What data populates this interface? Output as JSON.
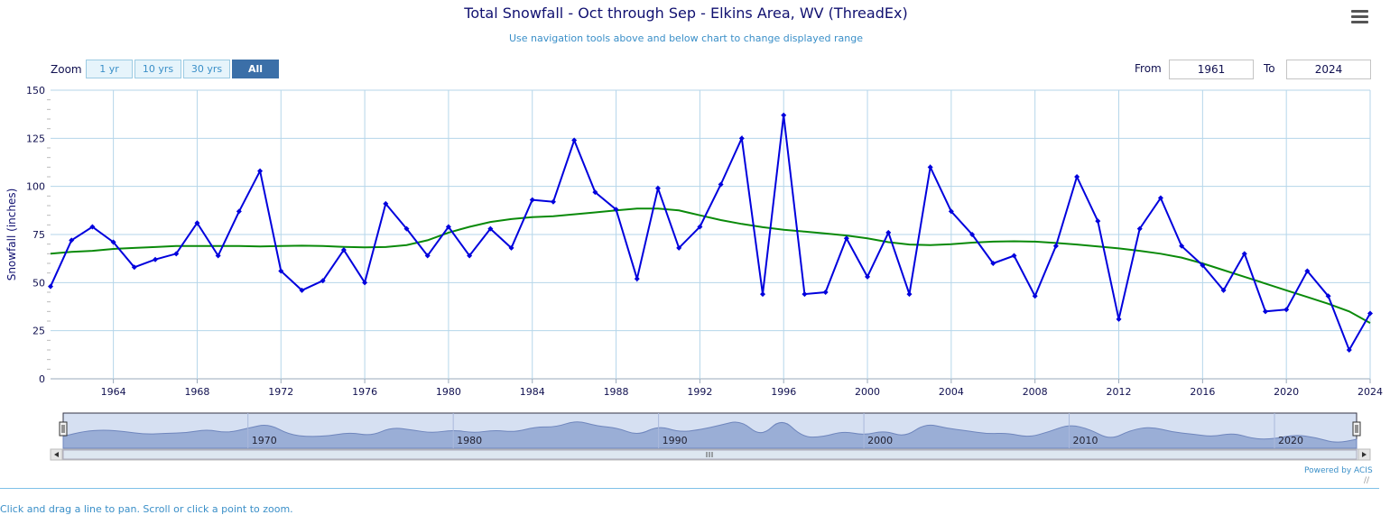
{
  "header": {
    "title": "Total Snowfall - Oct through Sep - Elkins Area, WV (ThreadEx)",
    "subtitle": "Use navigation tools above and below chart to change displayed range"
  },
  "zoom": {
    "label": "Zoom",
    "buttons": [
      "1 yr",
      "10 yrs",
      "30 yrs",
      "All"
    ],
    "active": "All"
  },
  "range": {
    "from_label": "From",
    "from_value": "1961",
    "to_label": "To",
    "to_value": "2024"
  },
  "footer": {
    "powered_by": "Powered by ACIS",
    "cut_text": "Click and drag a line to pan. Scroll or click a point to zoom."
  },
  "colors": {
    "series": "#0000dd",
    "smoothed": "#0a8a0a",
    "grid": "#b5d6ea",
    "navigator_fill": "#9aaed6",
    "navigator_bg": "#d6e0f2"
  },
  "icons": [
    "menu-icon",
    "handle-left-icon",
    "handle-right-icon",
    "arrow-left-icon",
    "arrow-right-icon",
    "scroll-grip-icon"
  ],
  "chart_data": {
    "type": "line",
    "title": "Total Snowfall - Oct through Sep - Elkins Area, WV (ThreadEx)",
    "ylabel": "Snowfall (inches)",
    "xlabel": "",
    "xlim": [
      1961,
      2024
    ],
    "ylim": [
      0,
      150
    ],
    "yticks": [
      0,
      25,
      50,
      75,
      100,
      125,
      150
    ],
    "xticks": [
      1964,
      1968,
      1972,
      1976,
      1980,
      1984,
      1988,
      1992,
      1996,
      2000,
      2004,
      2008,
      2012,
      2016,
      2020,
      2024
    ],
    "grid": true,
    "x": [
      1961,
      1962,
      1963,
      1964,
      1965,
      1966,
      1967,
      1968,
      1969,
      1970,
      1971,
      1972,
      1973,
      1974,
      1975,
      1976,
      1977,
      1978,
      1979,
      1980,
      1981,
      1982,
      1983,
      1984,
      1985,
      1986,
      1987,
      1988,
      1989,
      1990,
      1991,
      1992,
      1993,
      1994,
      1995,
      1996,
      1997,
      1998,
      1999,
      2000,
      2001,
      2002,
      2003,
      2004,
      2005,
      2006,
      2007,
      2008,
      2009,
      2010,
      2011,
      2012,
      2013,
      2014,
      2015,
      2016,
      2017,
      2018,
      2019,
      2020,
      2021,
      2022,
      2023,
      2024
    ],
    "series": [
      {
        "values": [
          48,
          72,
          79,
          71,
          58,
          62,
          65,
          81,
          64,
          87,
          108,
          56,
          46,
          51,
          67,
          50,
          91,
          78,
          64,
          79,
          64,
          78,
          68,
          93,
          92,
          124,
          97,
          88,
          52,
          99,
          68,
          79,
          101,
          125,
          44,
          137,
          44,
          45,
          73,
          53,
          76,
          44,
          110,
          87,
          75,
          60,
          64,
          43,
          69,
          105,
          82,
          31,
          78,
          94,
          69,
          59,
          46,
          65,
          35,
          36,
          56,
          43,
          15,
          34
        ]
      },
      {
        "values": [
          65,
          66,
          66.5,
          67.5,
          68,
          68.5,
          69,
          69,
          69,
          69,
          68.8,
          69,
          69.2,
          69,
          68.6,
          68.3,
          68.5,
          69.5,
          72,
          76,
          79,
          81.5,
          83,
          84,
          84.5,
          85.5,
          86.5,
          87.5,
          88.5,
          88.5,
          87.5,
          85,
          82.5,
          80.5,
          78.8,
          77.5,
          76.5,
          75.5,
          74.5,
          73,
          71,
          69.8,
          69.5,
          70,
          70.8,
          71.3,
          71.5,
          71.3,
          70.6,
          69.8,
          68.8,
          67.8,
          66.5,
          65,
          63,
          60,
          56.5,
          53,
          49.5,
          46,
          42.5,
          39,
          35,
          29
        ]
      }
    ],
    "navigator": {
      "range": [
        1961,
        2024
      ],
      "labels": [
        "1970",
        "1980",
        "1990",
        "2000",
        "2010",
        "2020"
      ]
    }
  }
}
